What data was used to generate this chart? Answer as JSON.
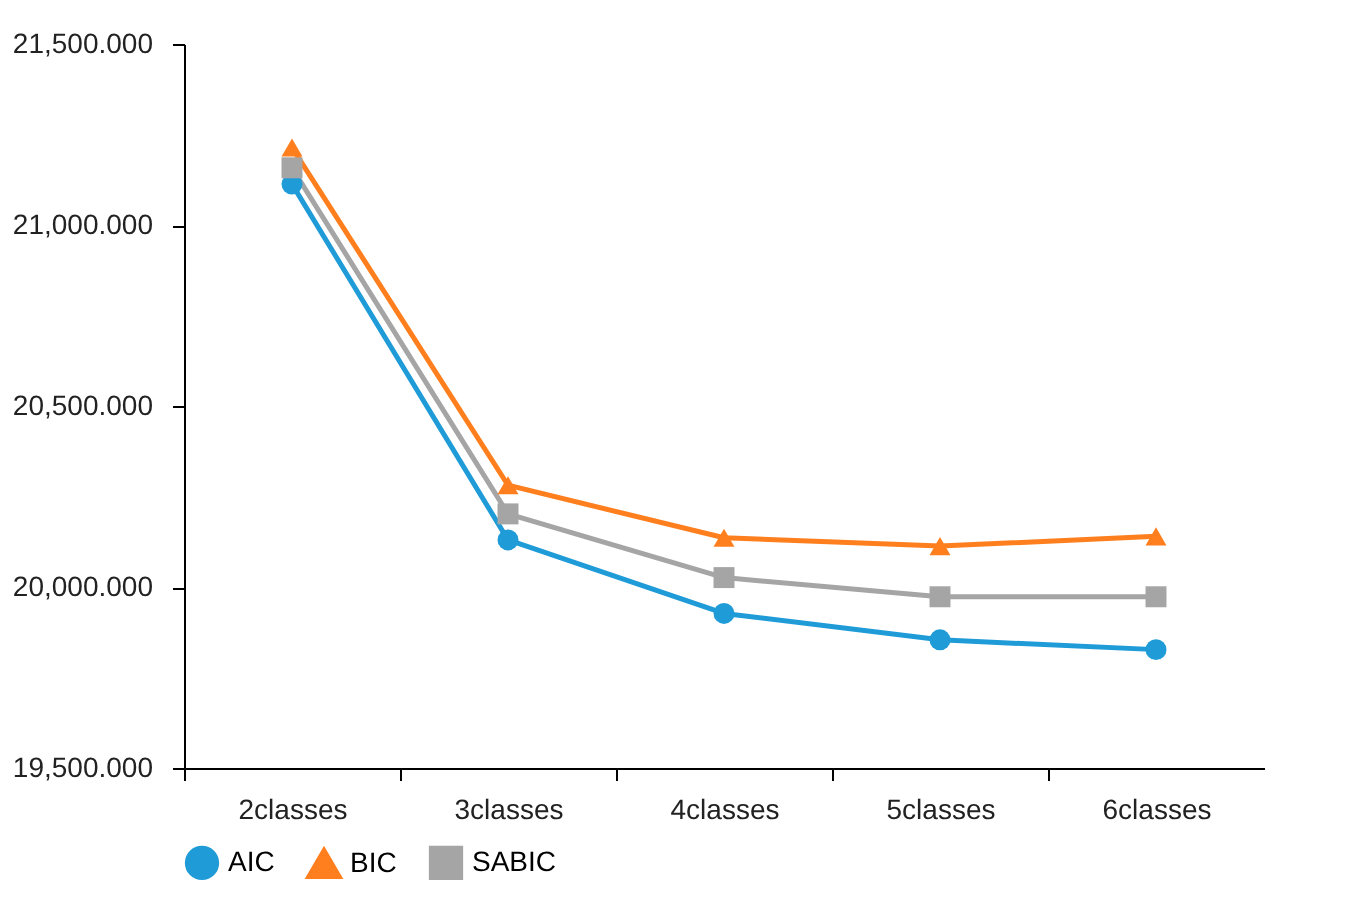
{
  "chart_data": {
    "type": "line",
    "categories": [
      "2classes",
      "3classes",
      "4classes",
      "5classes",
      "6classes"
    ],
    "series": [
      {
        "name": "AIC",
        "color": "#1f9bd7",
        "marker": "circle",
        "values": [
          21113,
          20130,
          19927,
          19854,
          19827
        ]
      },
      {
        "name": "BIC",
        "color": "#ff7f1e",
        "marker": "triangle",
        "values": [
          21214,
          20281,
          20136,
          20113,
          20140
        ]
      },
      {
        "name": "SABIC",
        "color": "#a5a5a5",
        "marker": "square",
        "values": [
          21158,
          20202,
          20026,
          19973,
          19973
        ]
      }
    ],
    "ylim": [
      19500,
      21500
    ],
    "yticks": [
      {
        "value": 19500,
        "label": "19,500.000"
      },
      {
        "value": 20000,
        "label": "20,000.000"
      },
      {
        "value": 20500,
        "label": "20,500.000"
      },
      {
        "value": 21000,
        "label": "21,000.000"
      },
      {
        "value": 21500,
        "label": "21,500.000"
      }
    ],
    "grid": false,
    "legend": "bottom",
    "line_style": "solid"
  }
}
